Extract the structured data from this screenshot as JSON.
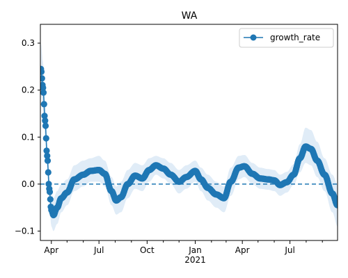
{
  "chart_data": {
    "type": "line",
    "title": "WA",
    "xlabel": "",
    "ylabel": "",
    "x_range": [
      "2020-03-11",
      "2021-09-30"
    ],
    "ylim": [
      -0.12,
      0.34
    ],
    "y_ticks": [
      -0.1,
      0.0,
      0.1,
      0.2,
      0.3
    ],
    "y_tick_labels": [
      "−0.1",
      "0.0",
      "0.1",
      "0.2",
      "0.3"
    ],
    "x_ticks": [
      {
        "date": "2020-04-01",
        "label": "Apr"
      },
      {
        "date": "2020-07-01",
        "label": "Jul"
      },
      {
        "date": "2020-10-01",
        "label": "Oct"
      },
      {
        "date": "2021-01-01",
        "label": "Jan"
      },
      {
        "date": "2021-04-01",
        "label": "Apr"
      },
      {
        "date": "2021-07-01",
        "label": "Jul"
      }
    ],
    "x_minor_ticks": [
      "2020-05-01",
      "2020-06-01",
      "2020-08-01",
      "2020-09-01",
      "2020-11-01",
      "2020-12-01",
      "2021-02-01",
      "2021-03-01",
      "2021-05-01",
      "2021-06-01",
      "2021-08-01",
      "2021-09-01"
    ],
    "x_secondary_label": {
      "date": "2021-01-01",
      "label": "2021"
    },
    "reference_line": {
      "y": 0.0,
      "style": "dashed"
    },
    "legend": {
      "position": "top-right"
    },
    "grid": false,
    "series": [
      {
        "name": "growth_rate",
        "color": "#1f77b4",
        "band_color": "#dbe9f6",
        "marker": "circle",
        "points": [
          {
            "x": "2020-03-12",
            "y": 0.245,
            "lo": 0.19,
            "hi": 0.3
          },
          {
            "x": "2020-03-16",
            "y": 0.205,
            "lo": 0.16,
            "hi": 0.26
          },
          {
            "x": "2020-03-20",
            "y": 0.135,
            "lo": 0.1,
            "hi": 0.18
          },
          {
            "x": "2020-03-24",
            "y": 0.06,
            "lo": 0.03,
            "hi": 0.09
          },
          {
            "x": "2020-03-28",
            "y": -0.01,
            "lo": -0.04,
            "hi": 0.02
          },
          {
            "x": "2020-04-01",
            "y": -0.055,
            "lo": -0.09,
            "hi": -0.02
          },
          {
            "x": "2020-04-05",
            "y": -0.066,
            "lo": -0.1,
            "hi": -0.03
          },
          {
            "x": "2020-04-12",
            "y": -0.05,
            "lo": -0.085,
            "hi": -0.015
          },
          {
            "x": "2020-04-20",
            "y": -0.03,
            "lo": -0.06,
            "hi": 0.0
          },
          {
            "x": "2020-05-01",
            "y": -0.018,
            "lo": -0.045,
            "hi": 0.01
          },
          {
            "x": "2020-05-15",
            "y": 0.01,
            "lo": -0.015,
            "hi": 0.04
          },
          {
            "x": "2020-06-01",
            "y": 0.02,
            "lo": -0.005,
            "hi": 0.05
          },
          {
            "x": "2020-06-15",
            "y": 0.028,
            "lo": 0.005,
            "hi": 0.055
          },
          {
            "x": "2020-07-01",
            "y": 0.03,
            "lo": 0.005,
            "hi": 0.06
          },
          {
            "x": "2020-07-12",
            "y": 0.022,
            "lo": -0.005,
            "hi": 0.05
          },
          {
            "x": "2020-07-25",
            "y": -0.015,
            "lo": -0.045,
            "hi": 0.015
          },
          {
            "x": "2020-08-03",
            "y": -0.035,
            "lo": -0.065,
            "hi": -0.005
          },
          {
            "x": "2020-08-12",
            "y": -0.028,
            "lo": -0.06,
            "hi": 0.005
          },
          {
            "x": "2020-08-25",
            "y": 0.0,
            "lo": -0.03,
            "hi": 0.03
          },
          {
            "x": "2020-09-08",
            "y": 0.018,
            "lo": -0.01,
            "hi": 0.045
          },
          {
            "x": "2020-09-22",
            "y": 0.012,
            "lo": -0.015,
            "hi": 0.04
          },
          {
            "x": "2020-10-05",
            "y": 0.03,
            "lo": 0.005,
            "hi": 0.055
          },
          {
            "x": "2020-10-18",
            "y": 0.04,
            "lo": 0.02,
            "hi": 0.06
          },
          {
            "x": "2020-11-01",
            "y": 0.033,
            "lo": 0.012,
            "hi": 0.055
          },
          {
            "x": "2020-11-15",
            "y": 0.02,
            "lo": 0.0,
            "hi": 0.045
          },
          {
            "x": "2020-12-01",
            "y": 0.005,
            "lo": -0.02,
            "hi": 0.03
          },
          {
            "x": "2020-12-15",
            "y": 0.015,
            "lo": -0.01,
            "hi": 0.04
          },
          {
            "x": "2021-01-01",
            "y": 0.028,
            "lo": 0.005,
            "hi": 0.05
          },
          {
            "x": "2021-01-12",
            "y": 0.01,
            "lo": -0.015,
            "hi": 0.035
          },
          {
            "x": "2021-01-25",
            "y": -0.008,
            "lo": -0.035,
            "hi": 0.02
          },
          {
            "x": "2021-02-10",
            "y": -0.022,
            "lo": -0.05,
            "hi": 0.005
          },
          {
            "x": "2021-02-25",
            "y": -0.03,
            "lo": -0.06,
            "hi": -0.005
          },
          {
            "x": "2021-03-10",
            "y": 0.005,
            "lo": -0.025,
            "hi": 0.035
          },
          {
            "x": "2021-03-25",
            "y": 0.035,
            "lo": 0.01,
            "hi": 0.06
          },
          {
            "x": "2021-04-05",
            "y": 0.038,
            "lo": 0.015,
            "hi": 0.062
          },
          {
            "x": "2021-04-20",
            "y": 0.022,
            "lo": 0.0,
            "hi": 0.045
          },
          {
            "x": "2021-05-05",
            "y": 0.012,
            "lo": -0.01,
            "hi": 0.035
          },
          {
            "x": "2021-05-20",
            "y": 0.01,
            "lo": -0.012,
            "hi": 0.032
          },
          {
            "x": "2021-06-01",
            "y": 0.008,
            "lo": -0.015,
            "hi": 0.03
          },
          {
            "x": "2021-06-12",
            "y": -0.002,
            "lo": -0.025,
            "hi": 0.02
          },
          {
            "x": "2021-06-25",
            "y": 0.004,
            "lo": -0.018,
            "hi": 0.026
          },
          {
            "x": "2021-07-08",
            "y": 0.02,
            "lo": -0.002,
            "hi": 0.042
          },
          {
            "x": "2021-07-20",
            "y": 0.055,
            "lo": 0.025,
            "hi": 0.085
          },
          {
            "x": "2021-07-31",
            "y": 0.08,
            "lo": 0.045,
            "hi": 0.12
          },
          {
            "x": "2021-08-10",
            "y": 0.075,
            "lo": 0.04,
            "hi": 0.115
          },
          {
            "x": "2021-08-22",
            "y": 0.05,
            "lo": 0.015,
            "hi": 0.09
          },
          {
            "x": "2021-09-05",
            "y": 0.02,
            "lo": -0.015,
            "hi": 0.055
          },
          {
            "x": "2021-09-20",
            "y": -0.02,
            "lo": -0.06,
            "hi": 0.02
          },
          {
            "x": "2021-09-30",
            "y": -0.045,
            "lo": -0.09,
            "hi": 0.0
          }
        ]
      }
    ]
  }
}
